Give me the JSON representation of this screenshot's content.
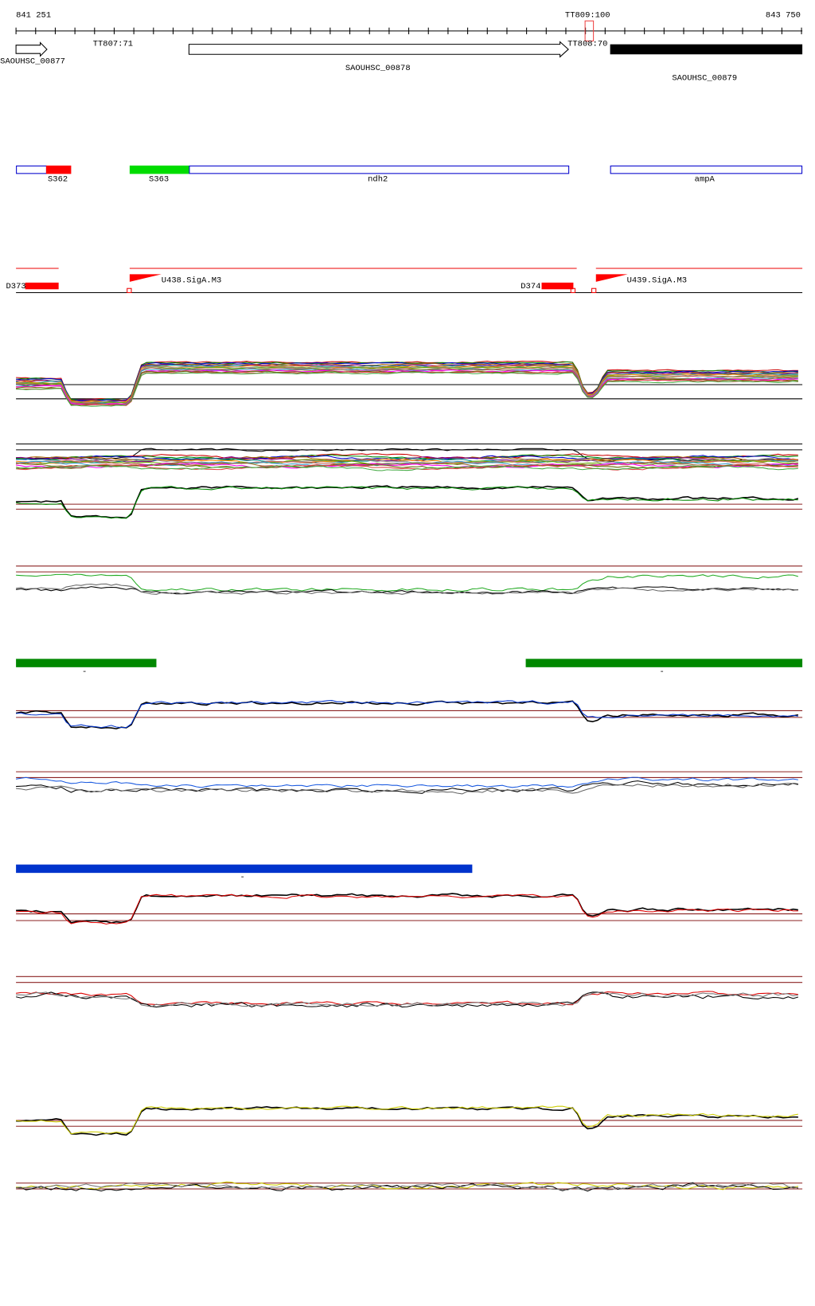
{
  "ruler": {
    "start": "841 251",
    "end": "843 750"
  },
  "terminators": [
    {
      "label": "TT809:100"
    },
    {
      "label": "TT807:71"
    },
    {
      "label": "TT808:70"
    }
  ],
  "genes": [
    {
      "label": "SAOUHSC_00877"
    },
    {
      "label": "SAOUHSC_00878"
    },
    {
      "label": "SAOUHSC_00879"
    }
  ],
  "features": [
    {
      "label": "S362"
    },
    {
      "label": "S363"
    },
    {
      "label": "ndh2"
    },
    {
      "label": "ampA"
    }
  ],
  "promoters": [
    {
      "label": "D373"
    },
    {
      "label": "U438.SigA.M3"
    },
    {
      "label": "D374"
    },
    {
      "label": "U439.SigA.M3"
    }
  ],
  "segment_labels": [
    "-",
    "-",
    "-"
  ]
}
